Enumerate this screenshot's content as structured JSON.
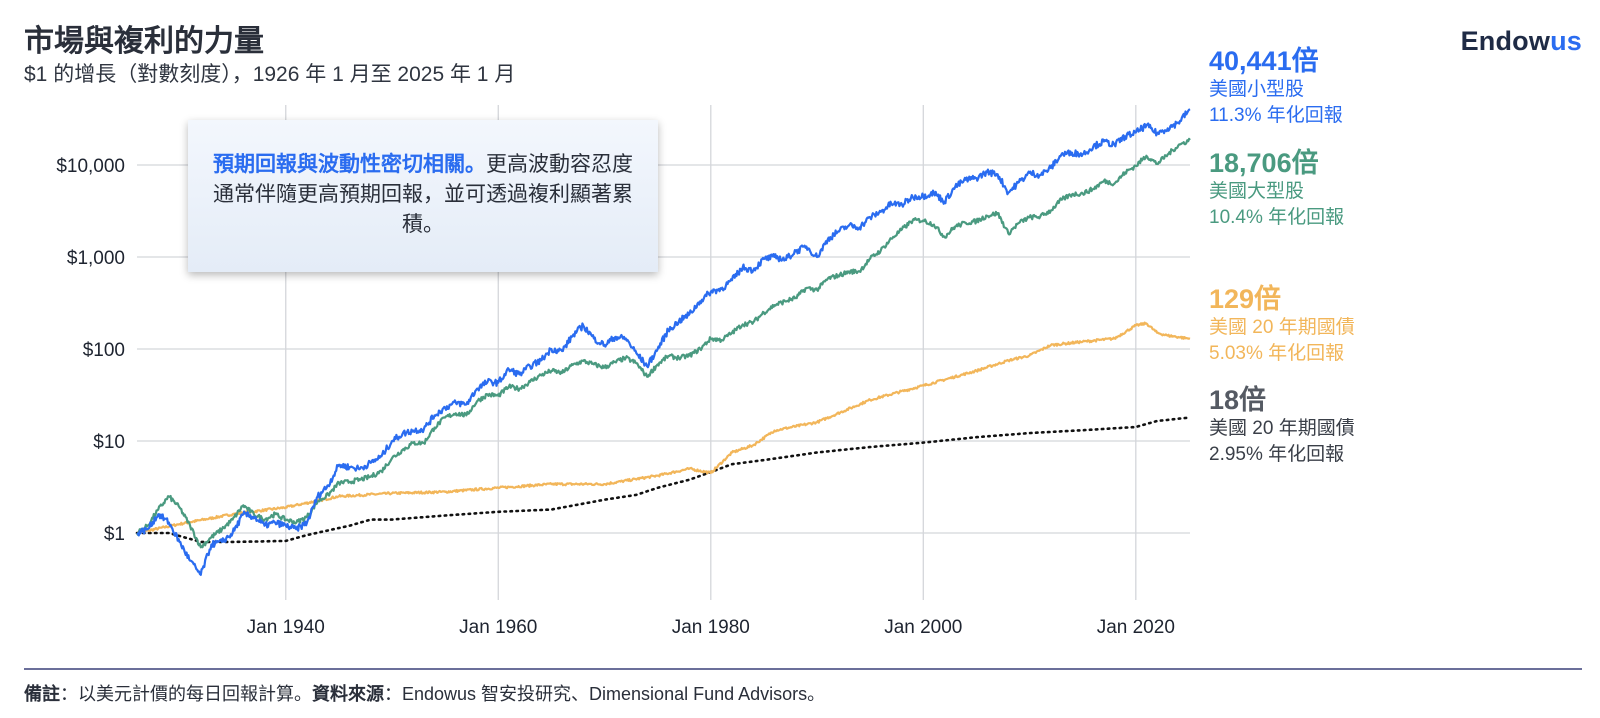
{
  "header": {
    "title": "市場與複利的力量",
    "subtitle": "$1 的增長（對數刻度），1926 年 1 月至 2025 年 1 月"
  },
  "logo": {
    "part1": "Endow",
    "part2": "us"
  },
  "callout": {
    "highlight": "預期回報與波動性密切相關。",
    "text": "更高波動容忍度通常伴隨更高預期回報，並可透過複利顯著累積。"
  },
  "end_labels": [
    {
      "multiple": "40,441倍",
      "name": "美國小型股",
      "return": "11.3% 年化回報",
      "color": "#2a6cf0"
    },
    {
      "multiple": "18,706倍",
      "name": "美國大型股",
      "return": "10.4% 年化回報",
      "color": "#4a9a80"
    },
    {
      "multiple": "129倍",
      "name": "美國 20 年期國債",
      "return": "5.03% 年化回報",
      "color": "#f2b65a"
    },
    {
      "multiple": "18倍",
      "name": "美國 20 年期國債",
      "return": "2.95% 年化回報",
      "color": "#555a63"
    }
  ],
  "footer": {
    "note_label": "備註",
    "note_text": "：以美元計價的每日回報計算。",
    "source_label": "資料來源",
    "source_text": "：Endowus 智安投研究、Dimensional Fund Advisors。"
  },
  "chart_data": {
    "type": "line",
    "title": "市場與複利的力量",
    "subtitle": "$1 的增長（對數刻度），1926 年 1 月至 2025 年 1 月",
    "y_scale": "log",
    "ylim": [
      0.3,
      50000
    ],
    "xlim": [
      1926.0,
      2025.1
    ],
    "y_ticks": [
      {
        "value": 1,
        "label": "$1"
      },
      {
        "value": 10,
        "label": "$10"
      },
      {
        "value": 100,
        "label": "$100"
      },
      {
        "value": 1000,
        "label": "$1,000"
      },
      {
        "value": 10000,
        "label": "$10,000"
      }
    ],
    "x_ticks": [
      {
        "value": 1940,
        "label": "Jan 1940"
      },
      {
        "value": 1960,
        "label": "Jan 1960"
      },
      {
        "value": 1980,
        "label": "Jan 1980"
      },
      {
        "value": 2000,
        "label": "Jan 2000"
      },
      {
        "value": 2020,
        "label": "Jan 2020"
      }
    ],
    "grid": true,
    "series": [
      {
        "key": "small_cap",
        "color": "#2a6cf0",
        "style": "solid",
        "x": [
          1926,
          1927,
          1928,
          1929,
          1930,
          1931,
          1932,
          1933,
          1934,
          1935,
          1936,
          1937,
          1938,
          1939,
          1940,
          1941,
          1942,
          1943,
          1944,
          1945,
          1946,
          1947,
          1948,
          1949,
          1950,
          1951,
          1952,
          1953,
          1954,
          1955,
          1956,
          1957,
          1958,
          1959,
          1960,
          1961,
          1962,
          1963,
          1964,
          1965,
          1966,
          1967,
          1968,
          1969,
          1970,
          1971,
          1972,
          1973,
          1974,
          1975,
          1976,
          1977,
          1978,
          1979,
          1980,
          1981,
          1982,
          1983,
          1984,
          1985,
          1986,
          1987,
          1988,
          1989,
          1990,
          1991,
          1992,
          1993,
          1994,
          1995,
          1996,
          1997,
          1998,
          1999,
          2000,
          2001,
          2002,
          2003,
          2004,
          2005,
          2006,
          2007,
          2008,
          2009,
          2010,
          2011,
          2012,
          2013,
          2014,
          2015,
          2016,
          2017,
          2018,
          2019,
          2020,
          2021,
          2022,
          2023,
          2024,
          2025.1
        ],
        "y": [
          1,
          1.1,
          1.6,
          1.3,
          0.8,
          0.5,
          0.35,
          0.75,
          0.8,
          1.0,
          1.6,
          1.5,
          1.2,
          1.3,
          1.2,
          1.1,
          1.3,
          2.5,
          3.3,
          5.5,
          5.2,
          5.0,
          5.8,
          6.8,
          10,
          12,
          13,
          13.5,
          19,
          23,
          26,
          25,
          37,
          44,
          43,
          60,
          53,
          65,
          75,
          100,
          95,
          140,
          180,
          130,
          110,
          135,
          130,
          90,
          65,
          100,
          160,
          200,
          240,
          330,
          420,
          450,
          560,
          770,
          720,
          950,
          1000,
          940,
          1150,
          1300,
          1000,
          1550,
          1900,
          2200,
          2100,
          2700,
          3100,
          3800,
          3700,
          4500,
          4600,
          5000,
          4000,
          5800,
          6900,
          7200,
          8400,
          7900,
          5000,
          6500,
          8200,
          7800,
          9300,
          13000,
          13600,
          13100,
          15900,
          18000,
          16500,
          20500,
          22500,
          27000,
          22000,
          25000,
          29000,
          40441
        ]
      },
      {
        "key": "large_cap",
        "color": "#4a9a80",
        "style": "solid",
        "x": [
          1926,
          1927,
          1928,
          1929,
          1930,
          1931,
          1932,
          1933,
          1934,
          1935,
          1936,
          1937,
          1938,
          1939,
          1940,
          1941,
          1942,
          1943,
          1944,
          1945,
          1946,
          1947,
          1948,
          1949,
          1950,
          1951,
          1952,
          1953,
          1954,
          1955,
          1956,
          1957,
          1958,
          1959,
          1960,
          1961,
          1962,
          1963,
          1964,
          1965,
          1966,
          1967,
          1968,
          1969,
          1970,
          1971,
          1972,
          1973,
          1974,
          1975,
          1976,
          1977,
          1978,
          1979,
          1980,
          1981,
          1982,
          1983,
          1984,
          1985,
          1986,
          1987,
          1988,
          1989,
          1990,
          1991,
          1992,
          1993,
          1994,
          1995,
          1996,
          1997,
          1998,
          1999,
          2000,
          2001,
          2002,
          2003,
          2004,
          2005,
          2006,
          2007,
          2008,
          2009,
          2010,
          2011,
          2012,
          2013,
          2014,
          2015,
          2016,
          2017,
          2018,
          2019,
          2020,
          2021,
          2022,
          2023,
          2024,
          2025.1
        ],
        "y": [
          1,
          1.2,
          1.8,
          2.5,
          1.9,
          1.2,
          0.7,
          0.9,
          1.1,
          1.4,
          2.0,
          1.6,
          1.4,
          1.6,
          1.4,
          1.3,
          1.5,
          2.2,
          2.6,
          3.5,
          3.6,
          3.8,
          4.1,
          4.7,
          6.5,
          8,
          9.5,
          9.5,
          14,
          18,
          20,
          19,
          27,
          32,
          31,
          39,
          37,
          44,
          52,
          58,
          55,
          67,
          74,
          68,
          63,
          72,
          80,
          70,
          50,
          68,
          84,
          80,
          85,
          100,
          130,
          125,
          150,
          185,
          195,
          250,
          300,
          330,
          360,
          460,
          440,
          580,
          630,
          690,
          700,
          960,
          1180,
          1580,
          2000,
          2500,
          2500,
          2250,
          1650,
          2150,
          2350,
          2450,
          2800,
          3000,
          1800,
          2350,
          2700,
          2750,
          3200,
          4200,
          4800,
          4900,
          5500,
          6700,
          6300,
          8300,
          9800,
          12600,
          10300,
          13000,
          16300,
          18706
        ]
      },
      {
        "key": "lt_gov_bonds",
        "color": "#f2b65a",
        "style": "solid",
        "x": [
          1926,
          1930,
          1935,
          1940,
          1945,
          1950,
          1955,
          1960,
          1965,
          1970,
          1975,
          1978,
          1980,
          1982,
          1984,
          1986,
          1990,
          1995,
          2000,
          2005,
          2008,
          2010,
          2012,
          2015,
          2018,
          2020,
          2021,
          2022,
          2023,
          2024,
          2025.1
        ],
        "y": [
          1,
          1.25,
          1.6,
          1.9,
          2.5,
          2.7,
          2.8,
          3.1,
          3.4,
          3.4,
          4.2,
          5.0,
          4.5,
          7.5,
          9.0,
          13,
          16,
          28,
          40,
          58,
          75,
          85,
          110,
          120,
          130,
          180,
          190,
          150,
          140,
          135,
          129
        ]
      },
      {
        "key": "inflation",
        "color": "#111111",
        "style": "dotted",
        "x": [
          1926,
          1929,
          1932,
          1935,
          1940,
          1942,
          1946,
          1948,
          1950,
          1955,
          1960,
          1965,
          1970,
          1973,
          1975,
          1978,
          1980,
          1982,
          1985,
          1990,
          1995,
          2000,
          2005,
          2010,
          2015,
          2020,
          2022,
          2025.1
        ],
        "y": [
          1,
          1.0,
          0.8,
          0.8,
          0.82,
          0.95,
          1.2,
          1.4,
          1.4,
          1.55,
          1.7,
          1.8,
          2.3,
          2.6,
          3.1,
          3.8,
          4.6,
          5.6,
          6.2,
          7.5,
          8.6,
          9.6,
          11,
          12.2,
          13.1,
          14.2,
          16.5,
          18
        ]
      }
    ]
  }
}
